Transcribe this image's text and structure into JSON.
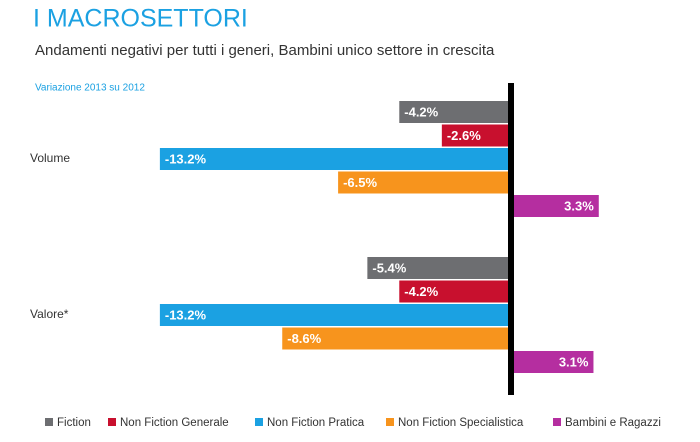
{
  "chart_data": {
    "type": "bar",
    "orientation": "horizontal",
    "title": "I MACROSETTORI",
    "subtitle": "Andamenti negativi per tutti i generi, Bambini unico settore in crescita",
    "annotation": "Variazione 2013 su 2012",
    "categories": [
      "Volume",
      "Valore*"
    ],
    "series": [
      {
        "name": "Fiction",
        "color": "#6d6e71",
        "values": [
          -4.2,
          -5.4
        ],
        "value_labels": [
          "-4.2%",
          "-5.4%"
        ]
      },
      {
        "name": "Non Fiction Generale",
        "color": "#c8102e",
        "values": [
          -2.6,
          -4.2
        ],
        "value_labels": [
          "-2.6%",
          "-4.2%"
        ]
      },
      {
        "name": "Non Fiction Pratica",
        "color": "#1ba1e2",
        "values": [
          -13.2,
          -13.2
        ],
        "value_labels": [
          "-13.2%",
          "-13.2%"
        ]
      },
      {
        "name": "Non Fiction Specialistica",
        "color": "#f7941d",
        "values": [
          -6.5,
          -8.6
        ],
        "value_labels": [
          "-6.5%",
          "-8.6%"
        ]
      },
      {
        "name": "Bambini e Ragazzi",
        "color": "#b52ea0",
        "values": [
          3.3,
          3.1
        ],
        "value_labels": [
          "3.3%",
          "3.1%"
        ]
      }
    ],
    "legend": "bottom"
  }
}
